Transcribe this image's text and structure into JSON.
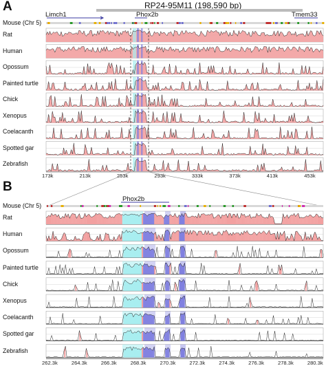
{
  "figure": {
    "panel_a_letter": "A",
    "panel_b_letter": "B",
    "clone_label": "RP24-95M11 (198,590 bp)",
    "reference_label": "Mouse (Chr 5)"
  },
  "panel_a": {
    "genes": [
      "Limch1",
      "Phox2b",
      "Tmem33"
    ],
    "species": [
      "Rat",
      "Human",
      "Opossum",
      "Painted turtle",
      "Chick",
      "Xenopus",
      "Coelacanth",
      "Spotted gar",
      "Zebrafish"
    ],
    "ticks": [
      "173k",
      "213k",
      "253k",
      "293k",
      "333k",
      "373k",
      "413k",
      "453k"
    ]
  },
  "panel_b": {
    "genes": [
      "Phox2b"
    ],
    "species": [
      "Rat",
      "Human",
      "Opossum",
      "Painted turtle",
      "Chick",
      "Xenopus",
      "Coelacanth",
      "Spotted gar",
      "Zebrafish"
    ],
    "ticks": [
      "262.3k",
      "264.3k",
      "266.3k",
      "268.3k",
      "270.3k",
      "272.3k",
      "274.3k",
      "276.3k",
      "278.3k",
      "280.3k"
    ]
  },
  "colors": {
    "conserved_noncoding": "#f2a0a0",
    "exon": "#8080e0",
    "utr": "#a8eef0",
    "outline": "#222222",
    "grid": "#cccccc"
  }
}
